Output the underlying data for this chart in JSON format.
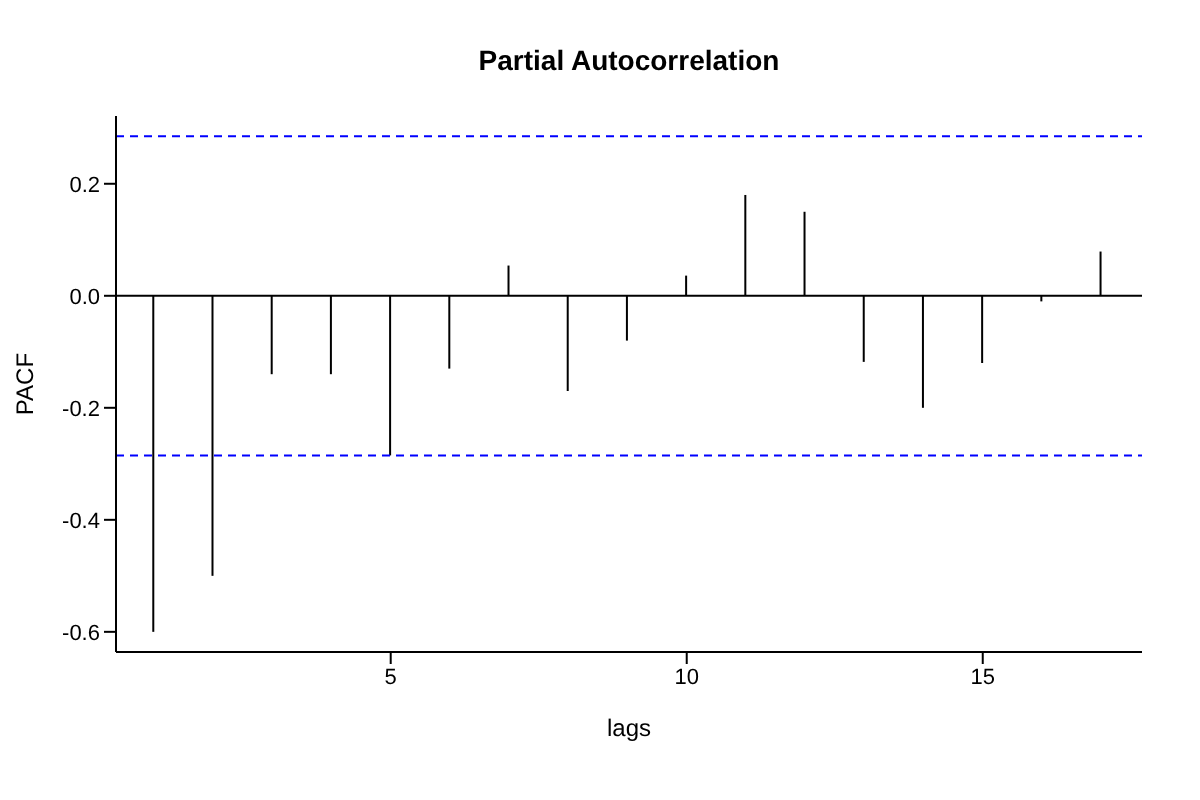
{
  "chart_data": {
    "type": "bar",
    "title": "Partial Autocorrelation",
    "xlabel": "lags",
    "ylabel": "PACF",
    "x": [
      1,
      2,
      3,
      4,
      5,
      6,
      7,
      8,
      9,
      10,
      11,
      12,
      13,
      14,
      15,
      16,
      17
    ],
    "values": [
      -0.6,
      -0.5,
      -0.14,
      -0.14,
      -0.285,
      -0.13,
      0.054,
      -0.17,
      -0.08,
      0.036,
      0.18,
      0.15,
      -0.118,
      -0.2,
      -0.12,
      -0.01,
      0.079
    ],
    "color": "#000000",
    "xlim": [
      0.36,
      17.69
    ],
    "xticks": [
      5,
      10,
      15
    ],
    "ylim": [
      -0.636,
      0.321
    ],
    "yticks": [
      -0.6,
      -0.4,
      -0.2,
      {
        "value": 0,
        "label": "0.0"
      },
      0.2
    ],
    "ref_lines": [
      {
        "axis": "y",
        "value": 0,
        "color": "#000000",
        "line_style": "solid"
      },
      {
        "axis": "y",
        "value": 0.285,
        "color": "#0000ff",
        "line_style": "dashed"
      },
      {
        "axis": "y",
        "value": -0.285,
        "color": "#0000ff",
        "line_style": "dashed"
      }
    ],
    "grid": false
  }
}
